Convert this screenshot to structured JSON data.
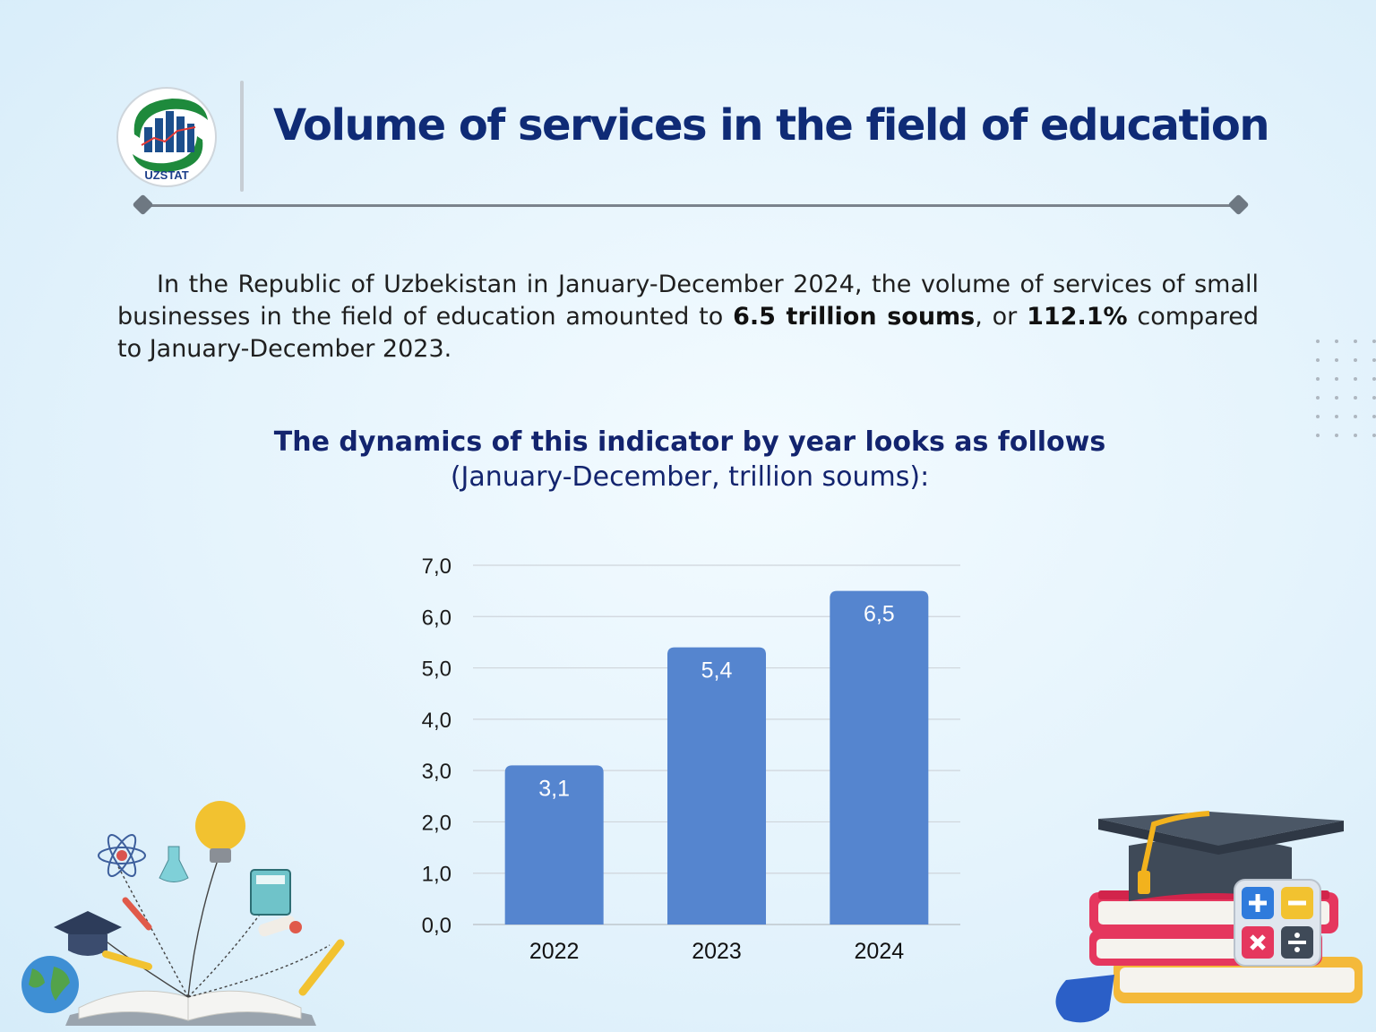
{
  "header": {
    "logo_text": "UZSTAT",
    "title": "Volume of services in the field of education"
  },
  "summary": {
    "intro": "In the Republic of Uzbekistan in January-December 2024, the volume of services of small businesses in the field of education amounted to ",
    "volume": "6.5 trillion soums",
    "mid": ", or ",
    "growth": "112.1%",
    "outro": " compared to January-December 2023."
  },
  "chart_heading": {
    "line1": "The dynamics of this indicator by year looks as follows",
    "line2": "(January-December, trillion soums):"
  },
  "colors": {
    "bar": "#5585cf",
    "title": "#0f2b76"
  },
  "chart_data": {
    "type": "bar",
    "categories": [
      "2022",
      "2023",
      "2024"
    ],
    "values": [
      3.1,
      5.4,
      6.5
    ],
    "value_labels": [
      "3,1",
      "5,4",
      "6,5"
    ],
    "y_ticks": [
      "0,0",
      "1,0",
      "2,0",
      "3,0",
      "4,0",
      "5,0",
      "6,0",
      "7,0"
    ],
    "ylim": [
      0,
      7
    ],
    "grid": true,
    "legend": "none"
  }
}
